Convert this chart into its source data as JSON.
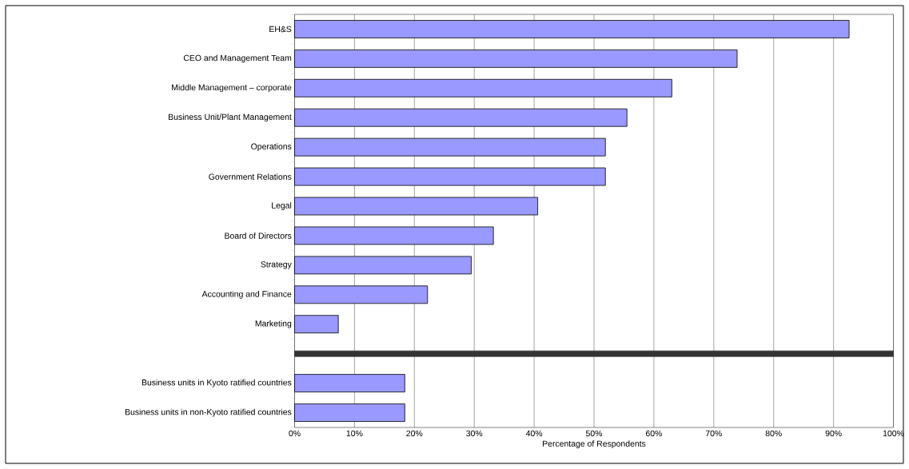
{
  "chart_data": {
    "type": "bar",
    "orientation": "horizontal",
    "categories": [
      "EH&S",
      "CEO and Management Team",
      "Middle Management – corporate",
      "Business Unit/Plant Management",
      "Operations",
      "Government Relations",
      "Legal",
      "Board of Directors",
      "Strategy",
      "Accounting and Finance",
      "Marketing",
      null,
      "Business units in Kyoto ratified countries",
      "Business units in non-Kyoto ratified countries"
    ],
    "values": [
      92.6,
      73.9,
      63.0,
      55.5,
      51.9,
      51.9,
      40.6,
      33.2,
      29.5,
      22.2,
      7.3,
      100,
      18.4,
      18.4
    ],
    "colors": [
      "#9999ff",
      "#9999ff",
      "#9999ff",
      "#9999ff",
      "#9999ff",
      "#9999ff",
      "#9999ff",
      "#9999ff",
      "#9999ff",
      "#9999ff",
      "#9999ff",
      "#333333",
      "#9999ff",
      "#9999ff"
    ],
    "xlabel": "Percentage of Respondents",
    "xlim": [
      0,
      100
    ],
    "xticks": [
      {
        "value": 0,
        "label": "0%"
      },
      {
        "value": 10,
        "label": "10%"
      },
      {
        "value": 20,
        "label": "20%"
      },
      {
        "value": 30,
        "label": "30%"
      },
      {
        "value": 40,
        "label": "40%"
      },
      {
        "value": 50,
        "label": "50%"
      },
      {
        "value": 60,
        "label": "60%"
      },
      {
        "value": 70,
        "label": "70%"
      },
      {
        "value": 80,
        "label": "80%"
      },
      {
        "value": 90,
        "label": "90%"
      },
      {
        "value": 100,
        "label": "100%"
      }
    ],
    "grid": "x"
  }
}
